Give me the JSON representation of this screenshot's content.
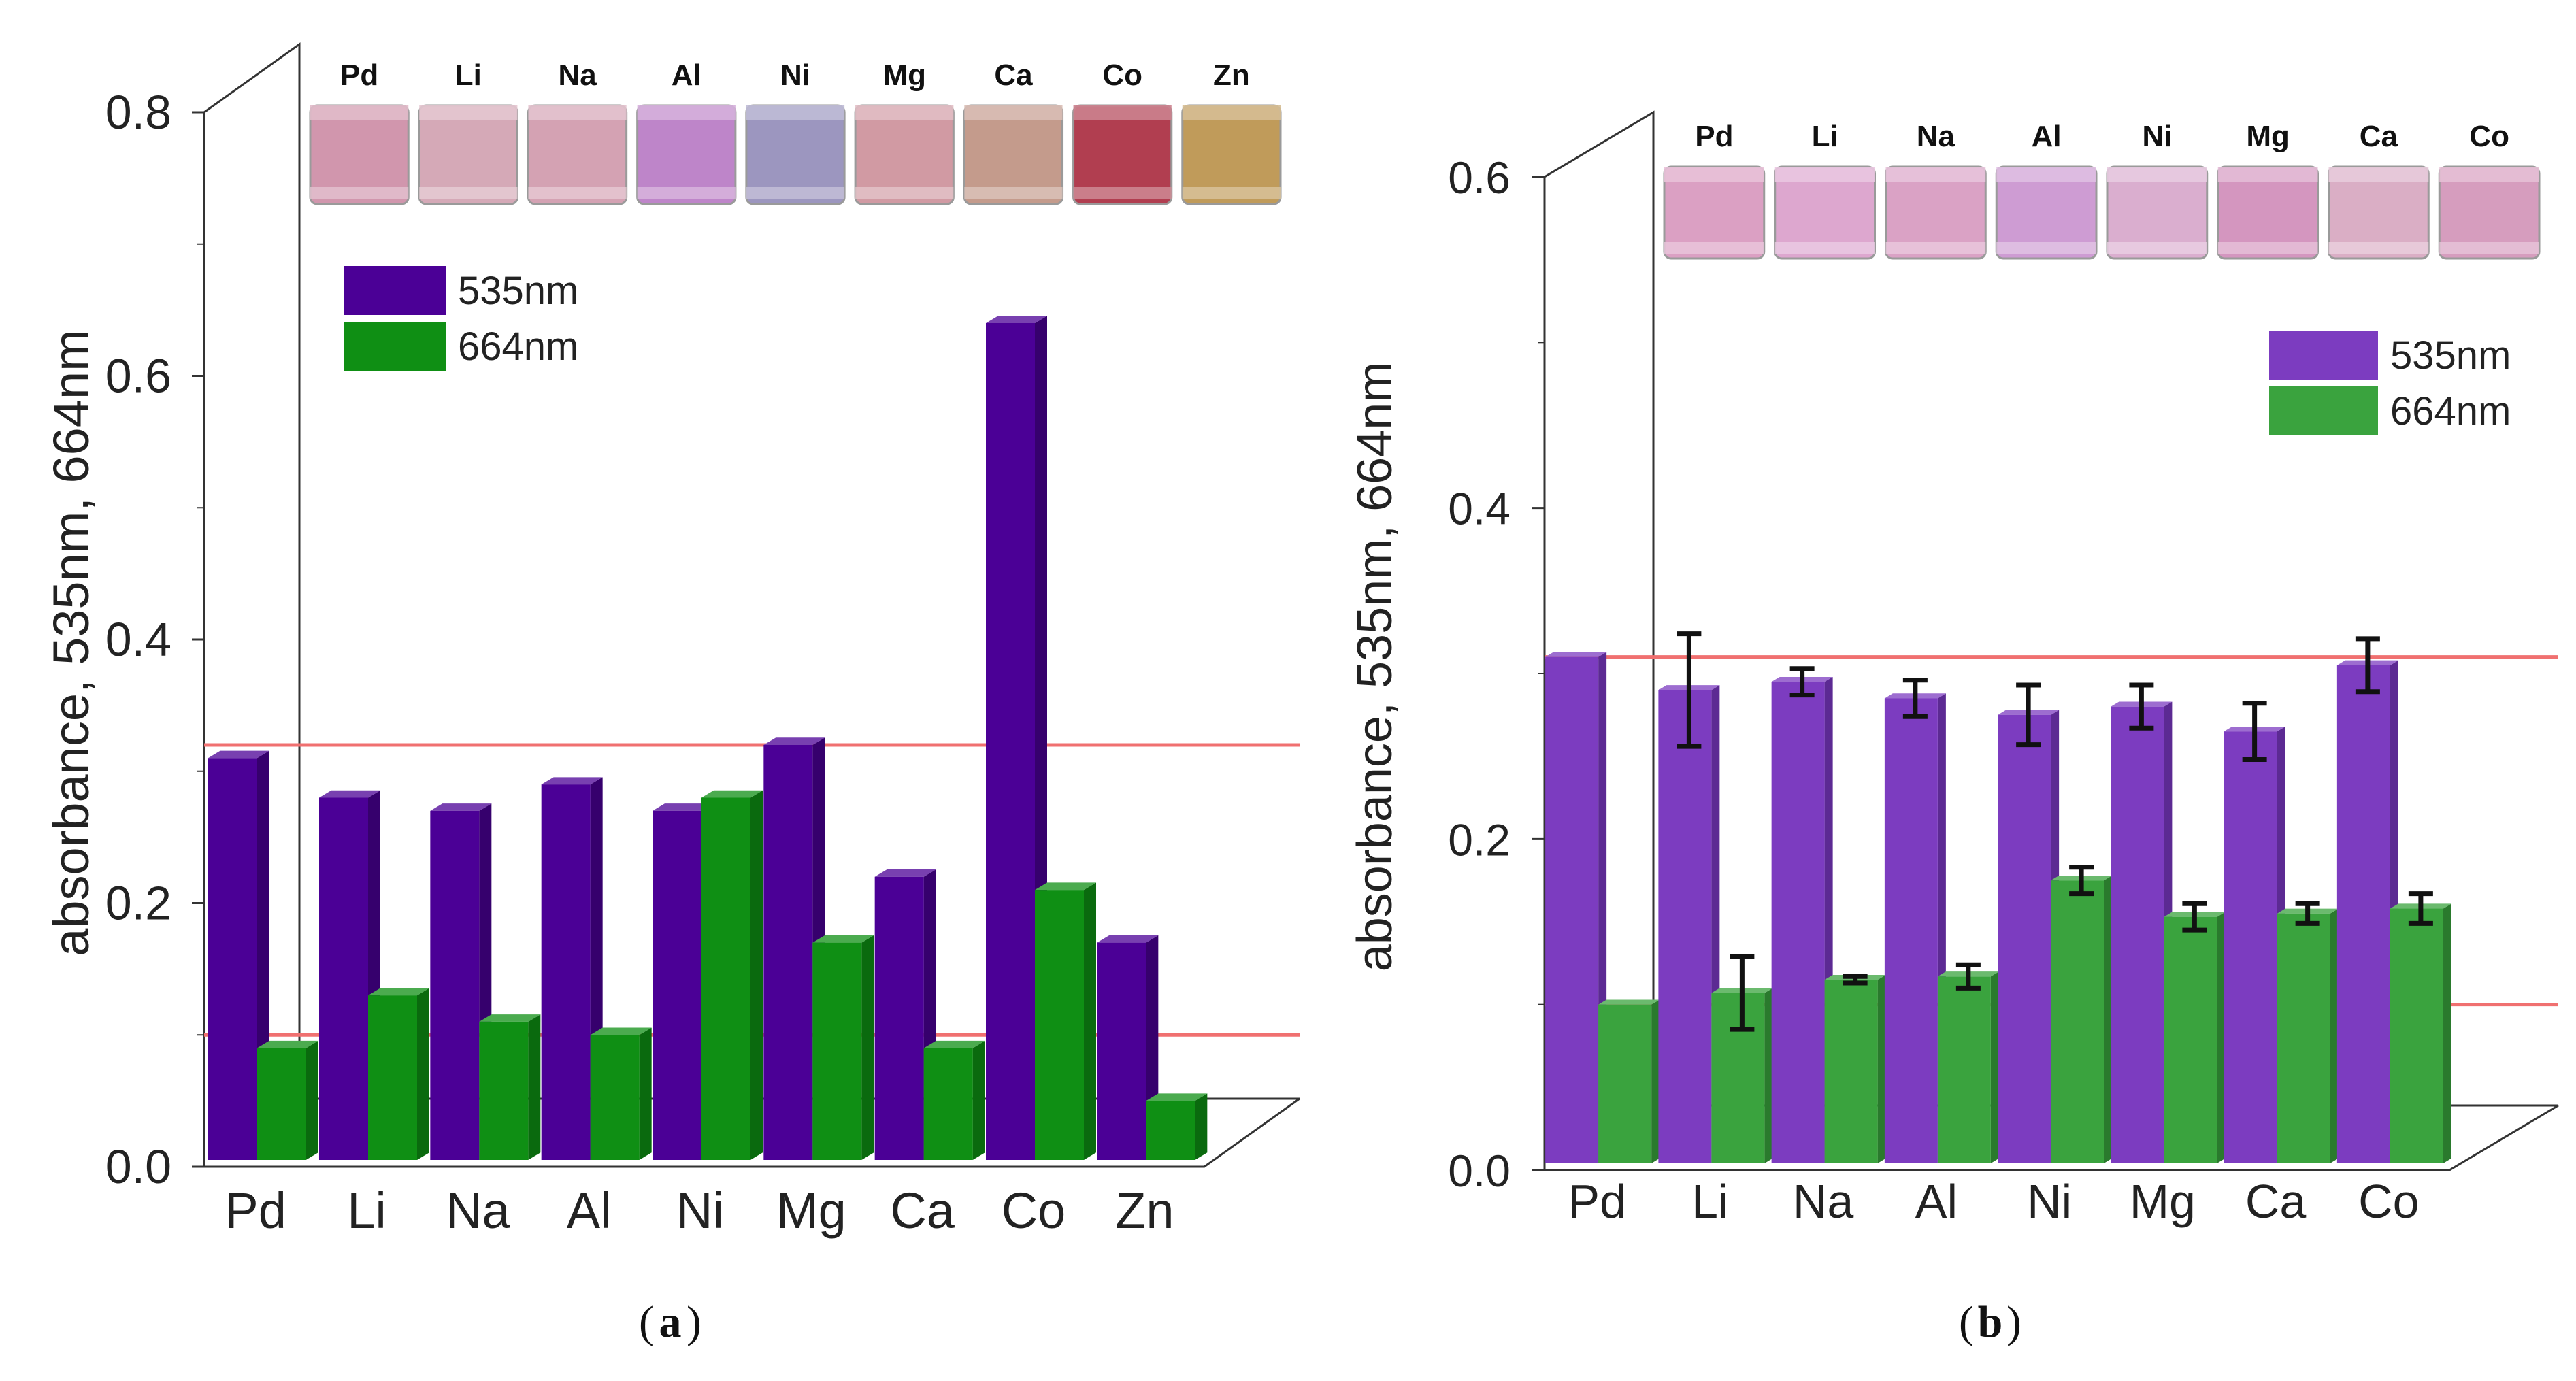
{
  "colors": {
    "bar_535": "#4b0096",
    "bar_535_side": "#36006d",
    "bar_664": "#0f8f14",
    "bar_664_side": "#0a6a0e",
    "bar_535_b": "#7c3cc0",
    "bar_535_b_side": "#5c2a93",
    "bar_664_b": "#3aa33e",
    "bar_664_b_side": "#2a7a2d",
    "threshold": "#f07070",
    "axis": "#333333",
    "error_bar": "#111111"
  },
  "chart_data": [
    {
      "panel": "a",
      "type": "bar",
      "caption_letter": "a",
      "ylabel": "absorbance, 535nm, 664nm",
      "ylim": [
        0,
        0.8
      ],
      "yticks": [
        "0.0",
        "0.2",
        "0.4",
        "0.6",
        "0.8"
      ],
      "categories": [
        "Pd",
        "Li",
        "Na",
        "Al",
        "Ni",
        "Mg",
        "Ca",
        "Co",
        "Zn"
      ],
      "vial_labels": [
        "Pd",
        "Li",
        "Na",
        "Al",
        "Ni",
        "Mg",
        "Ca",
        "Co",
        "Zn"
      ],
      "vial_colors": [
        "#c9849e",
        "#cd9aaa",
        "#cc92a6",
        "#b26fbf",
        "#8a83b4",
        "#c98893",
        "#b98978",
        "#a31c31",
        "#b5893d"
      ],
      "series": [
        {
          "name": "535nm",
          "values": [
            0.31,
            0.28,
            0.27,
            0.29,
            0.27,
            0.32,
            0.22,
            0.64,
            0.17
          ]
        },
        {
          "name": "664nm",
          "values": [
            0.09,
            0.13,
            0.11,
            0.1,
            0.28,
            0.17,
            0.09,
            0.21,
            0.05
          ]
        }
      ],
      "legend": [
        "535nm",
        "664nm"
      ],
      "threshold_lines": [
        0.32,
        0.1
      ]
    },
    {
      "panel": "b",
      "type": "bar",
      "caption_letter": "b",
      "ylabel": "absorbance, 535nm, 664nm",
      "ylim": [
        0,
        0.6
      ],
      "yticks": [
        "0.0",
        "0.2",
        "0.4",
        "0.6"
      ],
      "categories": [
        "Pd",
        "Li",
        "Na",
        "Al",
        "Ni",
        "Mg",
        "Ca",
        "Co"
      ],
      "vial_labels": [
        "Pd",
        "Li",
        "Na",
        "Al",
        "Ni",
        "Mg",
        "Ca",
        "Co"
      ],
      "vial_colors": [
        "#d58fb8",
        "#d798c6",
        "#d492bb",
        "#c58acb",
        "#d4a0c6",
        "#cc84b4",
        "#d4a0bb",
        "#cf8cb3"
      ],
      "series": [
        {
          "name": "535nm",
          "values": [
            0.31,
            0.29,
            0.295,
            0.285,
            0.275,
            0.28,
            0.265,
            0.305
          ],
          "errors": [
            0,
            0.034,
            0.008,
            0.011,
            0.018,
            0.013,
            0.017,
            0.016
          ]
        },
        {
          "name": "664nm",
          "values": [
            0.1,
            0.107,
            0.115,
            0.117,
            0.175,
            0.153,
            0.155,
            0.158
          ],
          "errors": [
            0,
            0.022,
            0.002,
            0.007,
            0.008,
            0.008,
            0.006,
            0.009
          ]
        }
      ],
      "legend": [
        "535nm",
        "664nm"
      ],
      "threshold_lines": [
        0.31,
        0.1
      ]
    }
  ]
}
